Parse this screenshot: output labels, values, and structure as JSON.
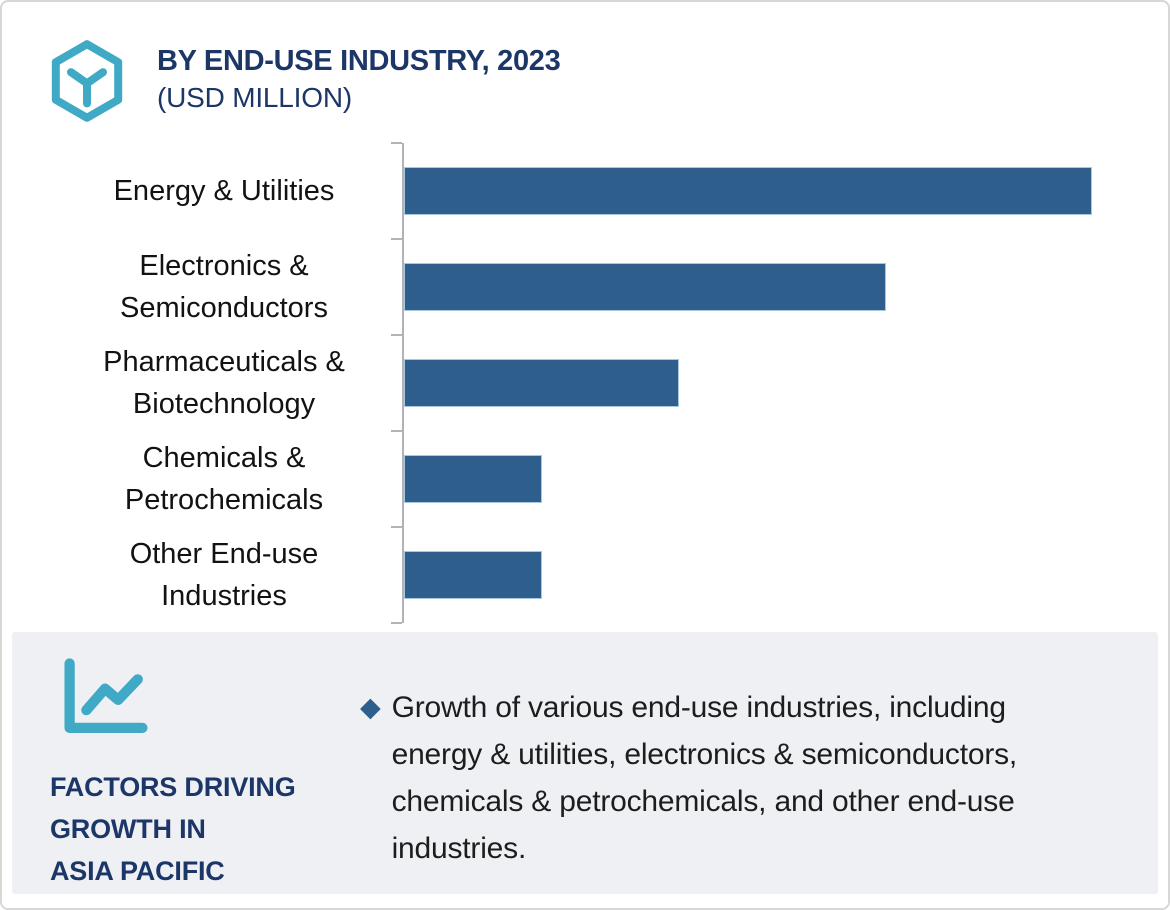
{
  "chart_data": {
    "type": "bar",
    "orientation": "horizontal",
    "title": "BY END-USE INDUSTRY, 2023",
    "subtitle": "(USD MILLION)",
    "categories": [
      "Energy & Utilities",
      "Electronics &\nSemiconductors",
      "Pharmaceuticals &\nBiotechnology",
      "Chemicals &\nPetrochemicals",
      "Other End-use\nIndustries"
    ],
    "values": [
      100,
      70,
      40,
      20,
      20
    ],
    "values_note": "relative bar lengths, % of longest bar; numeric axis not labeled in image",
    "xlim": [
      0,
      108.7
    ],
    "unit": "USD Million",
    "bar_color": "#2d5e8c",
    "bar_border_color": "#a9c7de",
    "axis_color": "#b3b3b3",
    "grid": false,
    "legend": false
  },
  "factors_panel": {
    "heading_lines": [
      "FACTORS DRIVING",
      "GROWTH IN",
      "ASIA PACIFIC"
    ],
    "bullet_glyph": "◆",
    "bullets": [
      "Growth of various end-use industries, including energy & utilities, electronics & semiconductors, chemicals & petrochemicals, and other end-use industries."
    ]
  },
  "icons": {
    "logo": "hexagon-cube-icon",
    "panel_icon": "line-chart-icon"
  },
  "colors": {
    "bar_blue": "#2d5e8c",
    "navy_text": "#1c3667",
    "teal_accent": "#3fa9c6",
    "panel_bg": "#eef0f4",
    "body_text": "#1d1d1d",
    "axis_gray": "#b3b3b3",
    "frame_border": "#d7d7d7"
  }
}
